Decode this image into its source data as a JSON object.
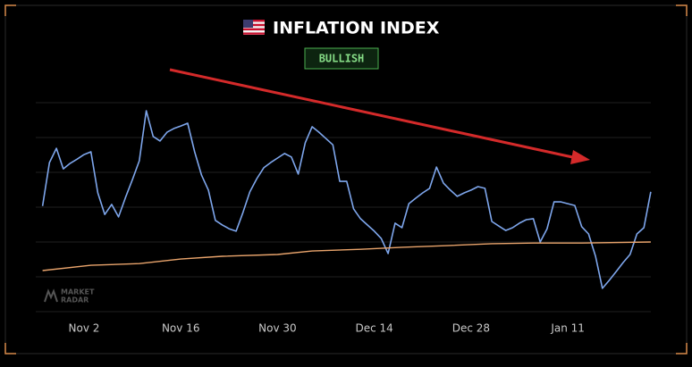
{
  "chart_data": {
    "type": "line",
    "title": "INFLATION INDEX",
    "badge": "BULLISH",
    "watermark": [
      "MARKET",
      "RADAR"
    ],
    "xlim": [
      -6,
      82
    ],
    "xticks": [
      {
        "value": 0,
        "label": "Nov 2"
      },
      {
        "value": 14,
        "label": "Nov 16"
      },
      {
        "value": 28,
        "label": "Nov 30"
      },
      {
        "value": 42,
        "label": "Dec 14"
      },
      {
        "value": 56,
        "label": "Dec 28"
      },
      {
        "value": 70,
        "label": "Jan 11"
      }
    ],
    "ylim": [
      0,
      6
    ],
    "yticks": [
      0,
      1,
      2,
      3,
      4,
      5,
      6
    ],
    "grid": true,
    "series": [
      {
        "color": "#7ea6ec",
        "x": [
          -6,
          -5,
          -4,
          -3,
          -2,
          -1,
          0,
          1,
          2,
          3,
          4,
          5,
          6,
          7,
          8,
          9,
          10,
          11,
          12,
          13,
          14,
          15,
          16,
          17,
          18,
          19,
          20,
          21,
          22,
          23,
          24,
          25,
          26,
          27,
          28,
          29,
          30,
          31,
          32,
          33,
          34,
          35,
          36,
          37,
          38,
          39,
          40,
          41,
          42,
          43,
          44,
          45,
          46,
          47,
          48,
          49,
          50,
          51,
          52,
          53,
          54,
          55,
          56,
          57,
          58,
          59,
          60,
          61,
          62,
          63,
          64,
          65,
          66,
          67,
          68,
          69,
          70,
          71,
          72,
          73,
          74,
          75,
          76,
          77,
          78,
          79,
          80,
          81,
          82
        ],
        "values": [
          3.03,
          4.28,
          4.69,
          4.1,
          4.26,
          4.38,
          4.51,
          4.59,
          3.41,
          2.79,
          3.08,
          2.72,
          3.28,
          3.79,
          4.33,
          5.77,
          5.03,
          4.9,
          5.15,
          5.26,
          5.33,
          5.41,
          4.59,
          3.92,
          3.49,
          2.62,
          2.49,
          2.38,
          2.31,
          2.85,
          3.44,
          3.82,
          4.13,
          4.28,
          4.41,
          4.54,
          4.44,
          3.95,
          4.85,
          5.31,
          5.15,
          4.97,
          4.79,
          3.74,
          3.74,
          2.95,
          2.67,
          2.49,
          2.31,
          2.1,
          1.67,
          2.54,
          2.41,
          3.1,
          3.26,
          3.41,
          3.54,
          4.15,
          3.69,
          3.49,
          3.31,
          3.41,
          3.49,
          3.59,
          3.54,
          2.59,
          2.46,
          2.33,
          2.41,
          2.54,
          2.64,
          2.67,
          2.0,
          2.38,
          3.15,
          3.15,
          3.1,
          3.05,
          2.44,
          2.23,
          1.59,
          0.67,
          0.9,
          1.15,
          1.41,
          1.64,
          2.23,
          2.41,
          3.44
        ]
      },
      {
        "color": "#e9a46c",
        "x": [
          -6,
          1,
          8,
          14,
          20,
          28,
          33,
          40,
          46,
          53,
          59,
          65,
          72,
          82
        ],
        "values": [
          1.18,
          1.33,
          1.38,
          1.51,
          1.59,
          1.64,
          1.74,
          1.79,
          1.85,
          1.9,
          1.95,
          1.97,
          1.97,
          2.0
        ]
      }
    ]
  }
}
